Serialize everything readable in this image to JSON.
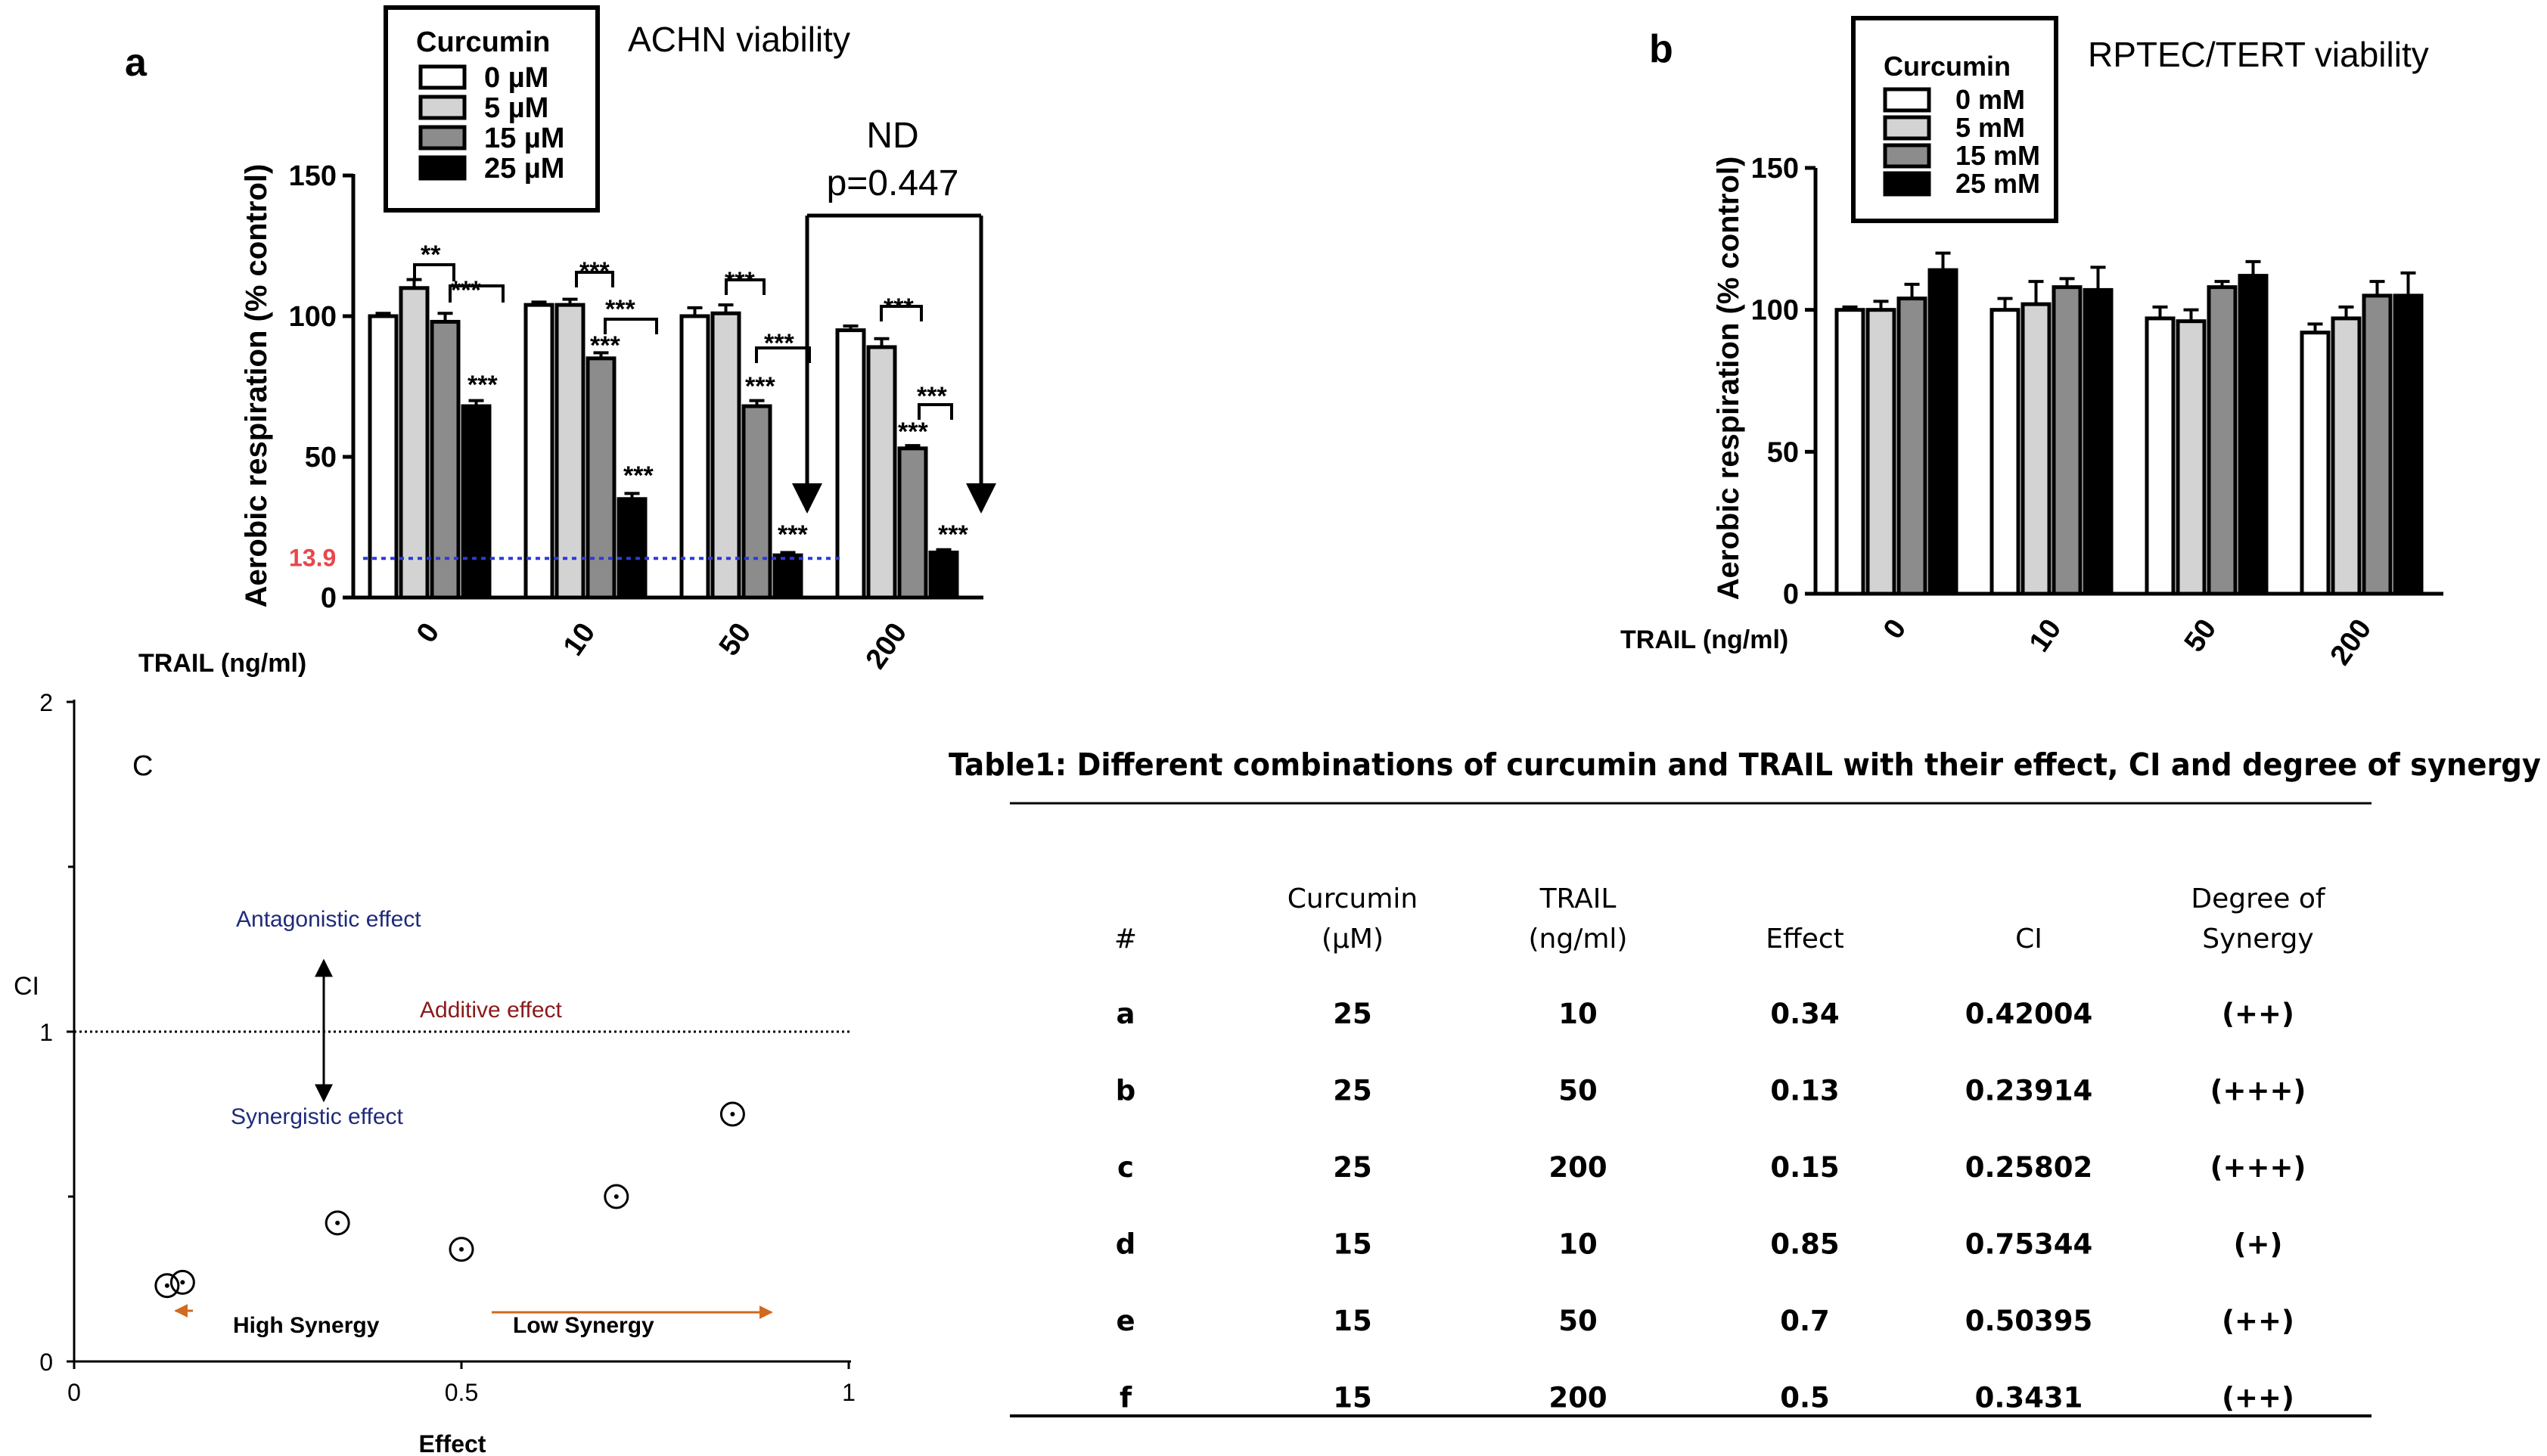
{
  "panel_labels": {
    "a": "a",
    "b": "b",
    "c": "C"
  },
  "table": {
    "title": "Table1: Different combinations of curcumin and TRAIL with their effect, CI and degree of synergy",
    "headers": [
      [
        "#"
      ],
      [
        "Curcumin",
        "(µM)"
      ],
      [
        "TRAIL",
        "(ng/ml)"
      ],
      [
        "Effect"
      ],
      [
        "CI"
      ],
      [
        "Degree of",
        "Synergy"
      ]
    ],
    "rows": [
      [
        "a",
        "25",
        "10",
        "0.34",
        "0.42004",
        "(++)"
      ],
      [
        "b",
        "25",
        "50",
        "0.13",
        "0.23914",
        "(+++)"
      ],
      [
        "c",
        "25",
        "200",
        "0.15",
        "0.25802",
        "(+++)"
      ],
      [
        "d",
        "15",
        "10",
        "0.85",
        "0.75344",
        "(+)"
      ],
      [
        "e",
        "15",
        "50",
        "0.7",
        "0.50395",
        "(++)"
      ],
      [
        "f",
        "15",
        "200",
        "0.5",
        "0.3431",
        "(++)"
      ]
    ]
  },
  "chart_data": [
    {
      "type": "bar",
      "title": "ACHN viability",
      "ylabel": "Aerobic respiration (% control)",
      "xlabel": "TRAIL (ng/ml)",
      "ylim": [
        0,
        150
      ],
      "yticks": [
        "0",
        "50",
        "100",
        "150"
      ],
      "categories": [
        "0",
        "10",
        "50",
        "200"
      ],
      "legend": {
        "title": "Curcumin",
        "position": "top-left"
      },
      "series": [
        {
          "name": "0 µM",
          "color": "#ffffff",
          "values": [
            100,
            104,
            100,
            95
          ],
          "errors": [
            1,
            1,
            3,
            1.5
          ]
        },
        {
          "name": "5 µM",
          "color": "#d3d3d3",
          "values": [
            110,
            104,
            101,
            89
          ],
          "errors": [
            3,
            2,
            3,
            3
          ]
        },
        {
          "name": "15 µM",
          "color": "#8c8c8c",
          "values": [
            98,
            85,
            68,
            53
          ],
          "errors": [
            3,
            2,
            2,
            1
          ]
        },
        {
          "name": "25 µM",
          "color": "#000000",
          "values": [
            68,
            35,
            15,
            16
          ],
          "errors": [
            2,
            2,
            1,
            1
          ]
        }
      ],
      "reference_line": {
        "value": 13.9,
        "label": "13.9",
        "color": "#2b3bd8",
        "label_color": "#e8474b"
      },
      "significance": [
        "**",
        "***",
        "***",
        "***",
        "***",
        "***",
        "***",
        "***",
        "***",
        "***",
        "***",
        "***",
        "***",
        "***",
        "***",
        "***"
      ],
      "annotation": {
        "line1": "ND",
        "line2": "p=0.447"
      }
    },
    {
      "type": "bar",
      "title": "RPTEC/TERT viability",
      "ylabel": "Aerobic respiration (% control)",
      "xlabel": "TRAIL (ng/ml)",
      "ylim": [
        0,
        150
      ],
      "yticks": [
        "0",
        "50",
        "100",
        "150"
      ],
      "categories": [
        "0",
        "10",
        "50",
        "200"
      ],
      "legend": {
        "title": "Curcumin",
        "position": "top-left"
      },
      "series": [
        {
          "name": "0 mM",
          "color": "#ffffff",
          "values": [
            100,
            100,
            97,
            92
          ],
          "errors": [
            1,
            4,
            4,
            3
          ]
        },
        {
          "name": "5 mM",
          "color": "#d3d3d3",
          "values": [
            100,
            102,
            96,
            97
          ],
          "errors": [
            3,
            8,
            4,
            4
          ]
        },
        {
          "name": "15 mM",
          "color": "#8c8c8c",
          "values": [
            104,
            108,
            108,
            105
          ],
          "errors": [
            5,
            3,
            2,
            5
          ]
        },
        {
          "name": "25 mM",
          "color": "#000000",
          "values": [
            114,
            107,
            112,
            105
          ],
          "errors": [
            6,
            8,
            5,
            8
          ]
        }
      ]
    },
    {
      "type": "scatter",
      "xlabel": "Effect",
      "ylabel": "CI",
      "xlim": [
        0,
        1
      ],
      "ylim": [
        0,
        2
      ],
      "xticks": [
        "0",
        "0.5",
        "1"
      ],
      "yticks": [
        "0",
        "1",
        "2"
      ],
      "points": [
        {
          "x": 0.12,
          "y": 0.23
        },
        {
          "x": 0.14,
          "y": 0.24
        },
        {
          "x": 0.34,
          "y": 0.42
        },
        {
          "x": 0.5,
          "y": 0.34
        },
        {
          "x": 0.7,
          "y": 0.5
        },
        {
          "x": 0.85,
          "y": 0.75
        }
      ],
      "additive_line": 1,
      "labels": {
        "antagonistic": "Antagonistic effect",
        "additive": "Additive effect",
        "synergistic": "Synergistic effect",
        "high": "High Synergy",
        "low": "Low Synergy"
      },
      "colors": {
        "antagonistic": "#1f2a7a",
        "additive": "#8b1a1a",
        "synergistic": "#1f2a7a",
        "arrow": "#d2691e"
      }
    }
  ]
}
